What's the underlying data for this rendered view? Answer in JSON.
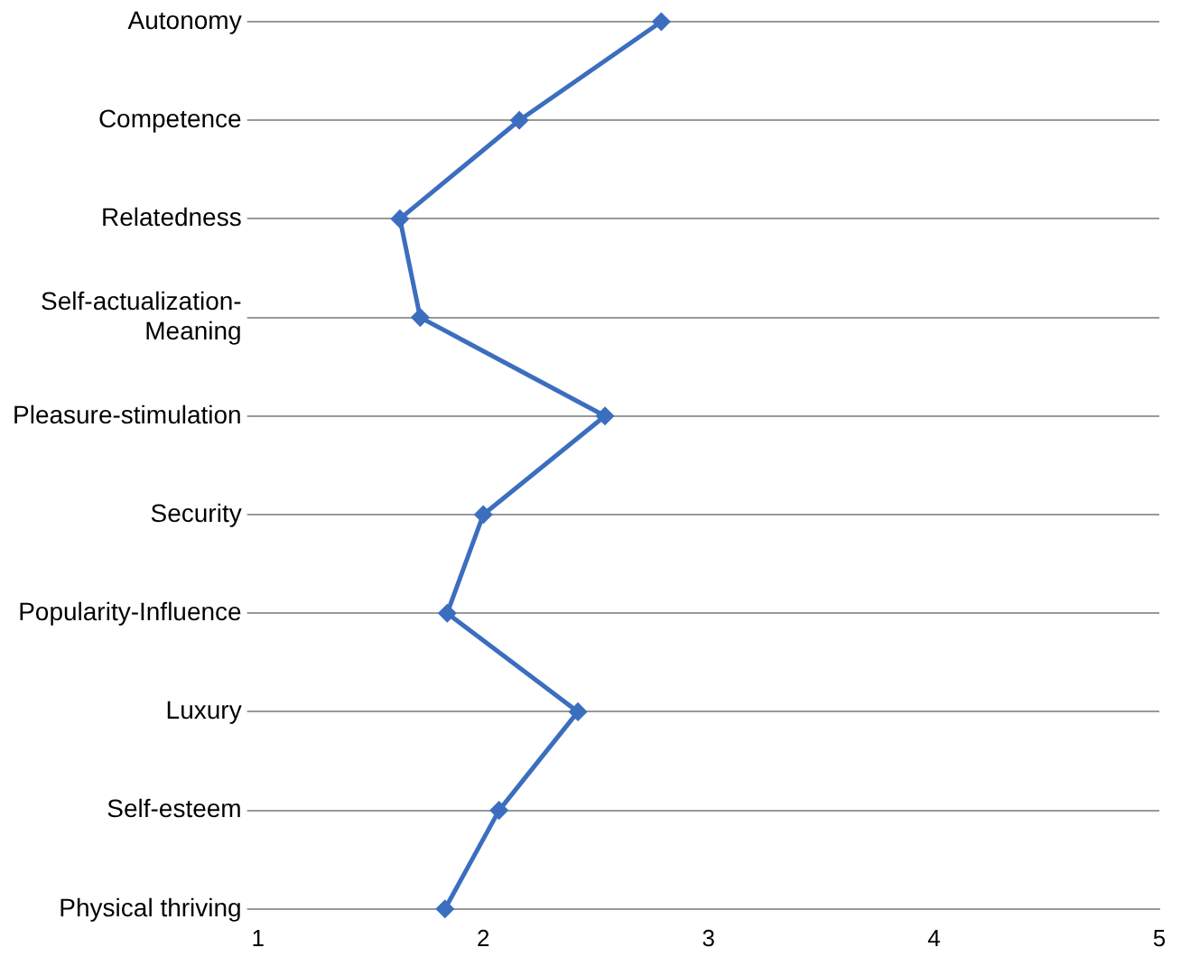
{
  "chart_data": {
    "type": "line",
    "orientation": "horizontal",
    "categories": [
      "Autonomy",
      "Competence",
      "Relatedness",
      "Self-actualization-Meaning",
      "Pleasure-stimulation",
      "Security",
      "Popularity-Influence",
      "Luxury",
      "Self-esteem",
      "Physical thriving"
    ],
    "values": [
      2.79,
      2.16,
      1.63,
      1.72,
      2.54,
      2.0,
      1.84,
      2.42,
      2.07,
      1.83
    ],
    "color": "#3c6ebf",
    "xlim": [
      1,
      5
    ],
    "xticks": [
      1,
      2,
      3,
      4,
      5
    ],
    "grid": "y",
    "marker": "diamond",
    "line_style": "solid",
    "legend": false
  }
}
